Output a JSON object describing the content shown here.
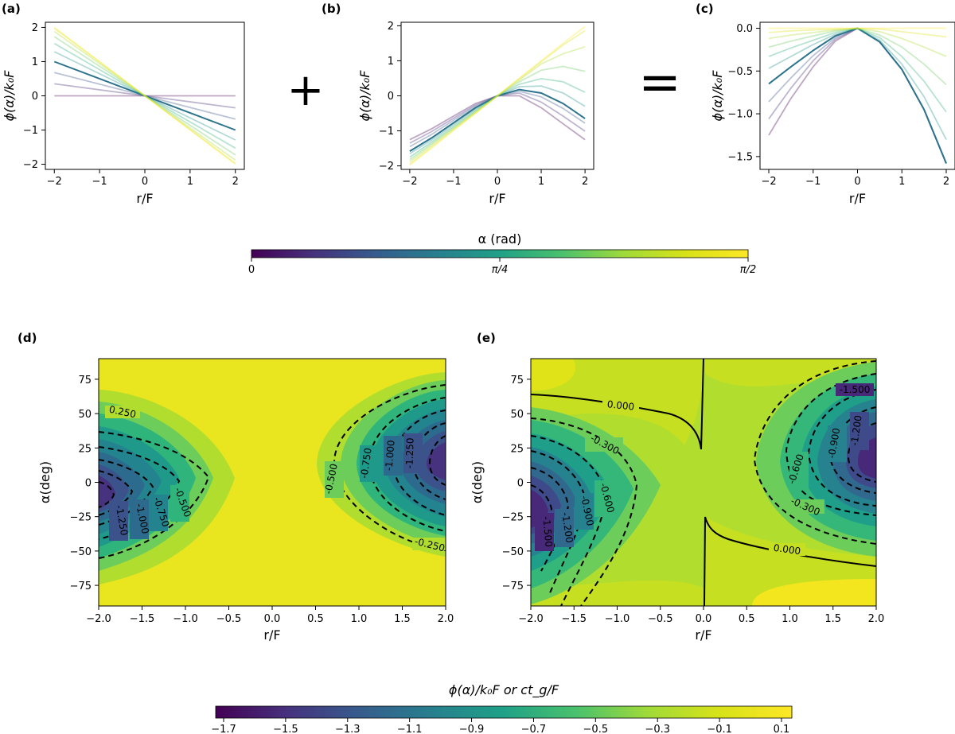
{
  "panel_labels": [
    "(a)",
    "(b)",
    "(c)",
    "(d)",
    "(e)"
  ],
  "operators": {
    "plus": "+",
    "equals": "="
  },
  "alpha_colorbar": {
    "label": "α (rad)",
    "ticks": [
      "0",
      "π/4",
      "π/2"
    ]
  },
  "bottom_colorbar": {
    "label": "ϕ(α)/k₀F  or  ct_g/F",
    "ticks": [
      "−1.7",
      "−1.5",
      "−1.3",
      "−1.1",
      "−0.9",
      "−0.7",
      "−0.5",
      "−0.3",
      "−0.1",
      "0.1"
    ]
  },
  "chart_data": [
    {
      "id": "a",
      "type": "line",
      "title": "",
      "xlabel": "r/F",
      "ylabel": "ϕ(α)/k₀F",
      "xlim": [
        -2,
        2
      ],
      "ylim": [
        -2.15,
        2.15
      ],
      "xticks": [
        "−2",
        "−1",
        "0",
        "1",
        "2"
      ],
      "yticks": [
        "−2",
        "−1",
        "0",
        "1",
        "2"
      ],
      "x": [
        -2,
        2
      ],
      "series": [
        {
          "alpha": 0.0,
          "values": [
            0,
            0
          ]
        },
        {
          "alpha": 0.175,
          "values": [
            0.35,
            -0.35
          ]
        },
        {
          "alpha": 0.349,
          "values": [
            0.68,
            -0.68
          ]
        },
        {
          "alpha": 0.524,
          "values": [
            1.0,
            -1.0
          ]
        },
        {
          "alpha": 0.698,
          "values": [
            1.29,
            -1.29
          ]
        },
        {
          "alpha": 0.873,
          "values": [
            1.53,
            -1.53
          ]
        },
        {
          "alpha": 1.047,
          "values": [
            1.73,
            -1.73
          ]
        },
        {
          "alpha": 1.222,
          "values": [
            1.88,
            -1.88
          ]
        },
        {
          "alpha": 1.396,
          "values": [
            1.97,
            -1.97
          ]
        },
        {
          "alpha": 1.571,
          "values": [
            2.0,
            -2.0
          ]
        }
      ]
    },
    {
      "id": "b",
      "type": "line",
      "title": "",
      "xlabel": "r/F",
      "ylabel": "ϕ(α)/k₀F",
      "xlim": [
        -2,
        2
      ],
      "ylim": [
        -2.1,
        2.1
      ],
      "xticks": [
        "−2",
        "−1",
        "0",
        "1",
        "2"
      ],
      "yticks": [
        "−2",
        "−1",
        "0",
        "1",
        "2"
      ],
      "x": [
        -2,
        -1.5,
        -1,
        -0.5,
        0,
        0.5,
        1,
        1.5,
        2
      ],
      "series": [
        {
          "alpha": 0.0,
          "values": [
            -1.25,
            -0.94,
            -0.58,
            -0.22,
            0,
            0.0,
            -0.34,
            -0.8,
            -1.25
          ]
        },
        {
          "alpha": 0.175,
          "values": [
            -1.35,
            -1.02,
            -0.64,
            -0.26,
            0,
            0.08,
            -0.18,
            -0.58,
            -1.01
          ]
        },
        {
          "alpha": 0.349,
          "values": [
            -1.45,
            -1.1,
            -0.7,
            -0.3,
            0,
            0.13,
            -0.03,
            -0.36,
            -0.78
          ]
        },
        {
          "alpha": 0.524,
          "values": [
            -1.58,
            -1.2,
            -0.77,
            -0.34,
            0,
            0.18,
            0.08,
            -0.22,
            -0.65
          ]
        },
        {
          "alpha": 0.698,
          "values": [
            -1.65,
            -1.26,
            -0.82,
            -0.38,
            0,
            0.26,
            0.28,
            0.08,
            -0.3
          ]
        },
        {
          "alpha": 0.873,
          "values": [
            -1.75,
            -1.32,
            -0.87,
            -0.42,
            0,
            0.33,
            0.49,
            0.4,
            0.1
          ]
        },
        {
          "alpha": 1.047,
          "values": [
            -1.82,
            -1.37,
            -0.91,
            -0.45,
            0,
            0.4,
            0.73,
            0.84,
            0.7
          ]
        },
        {
          "alpha": 1.222,
          "values": [
            -1.88,
            -1.41,
            -0.94,
            -0.47,
            0,
            0.45,
            0.91,
            1.2,
            1.4
          ]
        },
        {
          "alpha": 1.396,
          "values": [
            -1.94,
            -1.46,
            -0.97,
            -0.49,
            0,
            0.49,
            0.97,
            1.45,
            1.86
          ]
        },
        {
          "alpha": 1.571,
          "values": [
            -1.98,
            -1.49,
            -0.99,
            -0.5,
            0,
            0.5,
            1.0,
            1.5,
            1.98
          ]
        }
      ]
    },
    {
      "id": "c",
      "type": "line",
      "title": "",
      "xlabel": "r/F",
      "ylabel": "ϕ(α)/k₀F",
      "xlim": [
        -2,
        2
      ],
      "ylim": [
        -1.65,
        0.07
      ],
      "xticks": [
        "−2",
        "−1",
        "0",
        "1",
        "2"
      ],
      "yticks": [
        "0.0",
        "−0.5",
        "−1.0",
        "−1.5"
      ],
      "x": [
        -2,
        -1.5,
        -1,
        -0.5,
        0,
        0.5,
        1,
        1.5,
        2
      ],
      "series": [
        {
          "alpha": 0.0,
          "values": [
            -1.25,
            -0.82,
            -0.45,
            -0.15,
            0,
            -0.16,
            -0.48,
            -0.95,
            -1.58
          ]
        },
        {
          "alpha": 0.175,
          "values": [
            -1.06,
            -0.7,
            -0.38,
            -0.13,
            0,
            -0.16,
            -0.48,
            -0.95,
            -1.58
          ]
        },
        {
          "alpha": 0.349,
          "values": [
            -0.86,
            -0.58,
            -0.32,
            -0.11,
            0,
            -0.16,
            -0.48,
            -0.95,
            -1.58
          ]
        },
        {
          "alpha": 0.524,
          "values": [
            -0.65,
            -0.45,
            -0.26,
            -0.09,
            0,
            -0.16,
            -0.48,
            -0.95,
            -1.58
          ]
        },
        {
          "alpha": 0.698,
          "values": [
            -0.47,
            -0.33,
            -0.19,
            -0.07,
            0,
            -0.14,
            -0.42,
            -0.8,
            -1.3
          ]
        },
        {
          "alpha": 0.873,
          "values": [
            -0.33,
            -0.23,
            -0.14,
            -0.05,
            0,
            -0.11,
            -0.33,
            -0.62,
            -0.98
          ]
        },
        {
          "alpha": 1.047,
          "values": [
            -0.22,
            -0.15,
            -0.09,
            -0.03,
            0,
            -0.08,
            -0.22,
            -0.42,
            -0.66
          ]
        },
        {
          "alpha": 1.222,
          "values": [
            -0.12,
            -0.08,
            -0.05,
            -0.02,
            0,
            -0.04,
            -0.12,
            -0.22,
            -0.33
          ]
        },
        {
          "alpha": 1.396,
          "values": [
            -0.05,
            -0.03,
            -0.02,
            -0.01,
            0,
            -0.01,
            -0.04,
            -0.07,
            -0.1
          ]
        },
        {
          "alpha": 1.571,
          "values": [
            0,
            0,
            0,
            0,
            0,
            0,
            0,
            0,
            0
          ]
        }
      ]
    },
    {
      "id": "d",
      "type": "heatmap",
      "title": "",
      "xlabel": "r/F",
      "ylabel": "α(deg)",
      "xlim": [
        -2,
        2
      ],
      "ylim": [
        -90,
        90
      ],
      "xticks": [
        "−2.0",
        "−1.5",
        "−1.0",
        "−0.5",
        "0.0",
        "0.5",
        "1.0",
        "1.5",
        "2.0"
      ],
      "yticks": [
        "−75",
        "−50",
        "−25",
        "0",
        "25",
        "50",
        "75"
      ],
      "color_range": [
        -1.8,
        0.15
      ],
      "contour_labels": [
        "0.250",
        "-0.500",
        "-0.750",
        "-1.000",
        "-1.250",
        "-0.500",
        "-0.750",
        "-1.000",
        "-1.250",
        "-0.250"
      ]
    },
    {
      "id": "e",
      "type": "heatmap",
      "title": "",
      "xlabel": "r/F",
      "ylabel": "α(deg)",
      "xlim": [
        -2,
        2
      ],
      "ylim": [
        -90,
        90
      ],
      "xticks": [
        "−2.0",
        "−1.5",
        "−1.0",
        "−0.5",
        "0.0",
        "0.5",
        "1.0",
        "1.5",
        "2.0"
      ],
      "yticks": [
        "−75",
        "−50",
        "−25",
        "0",
        "25",
        "50",
        "75"
      ],
      "color_range": [
        -1.8,
        0.15
      ],
      "contour_labels": [
        "0.000",
        "-0.300",
        "-0.600",
        "-0.900",
        "-1.200",
        "-1.500",
        "-1.200",
        "-0.900",
        "-0.600",
        "-0.300",
        "0.000",
        "-1.500"
      ]
    }
  ]
}
